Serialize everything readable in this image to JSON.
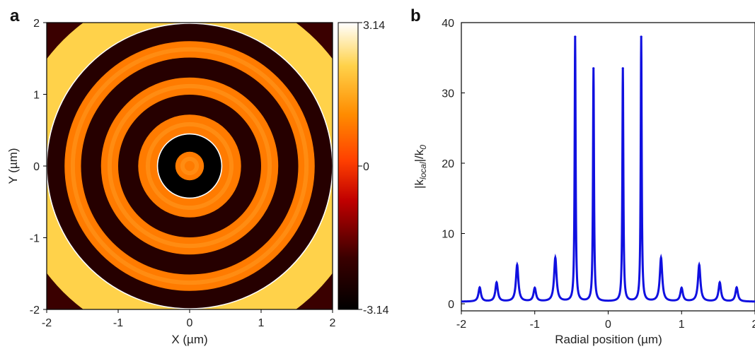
{
  "chart_data": [
    {
      "panel": "a",
      "type": "heatmap",
      "xlabel": "X (µm)",
      "ylabel": "Y (µm)",
      "xlim": [
        -2,
        2
      ],
      "ylim": [
        -2,
        2
      ],
      "x_ticks": [
        "-2",
        "-1",
        "0",
        "1",
        "2"
      ],
      "y_ticks": [
        "-2",
        "-1",
        "0",
        "1",
        "2"
      ],
      "colorbar": {
        "min_label": "-3.14",
        "mid_label": "0",
        "max_label": "3.14",
        "range": [
          -3.14,
          3.14
        ]
      },
      "colormap": [
        "#000000",
        "#3a0000",
        "#c00000",
        "#ff4000",
        "#ff8c00",
        "#ffd24a",
        "#ffffff"
      ],
      "center_disk_radius": 0.2,
      "inner_boundary_radius": 0.45,
      "outer_boundary_radius": 2.0,
      "rings": [
        {
          "r_min": 0.0,
          "r_max": 0.2,
          "phase": 0.9
        },
        {
          "r_min": 0.2,
          "r_max": 0.45,
          "phase": -3.14
        },
        {
          "r_min": 0.45,
          "r_max": 0.72,
          "phase": 0.9
        },
        {
          "r_min": 0.72,
          "r_max": 1.0,
          "phase": -2.4
        },
        {
          "r_min": 1.0,
          "r_max": 1.24,
          "phase": 0.9
        },
        {
          "r_min": 1.24,
          "r_max": 1.52,
          "phase": -2.4
        },
        {
          "r_min": 1.52,
          "r_max": 1.75,
          "phase": 0.9
        },
        {
          "r_min": 1.75,
          "r_max": 2.0,
          "phase": -2.4
        },
        {
          "r_min": 2.0,
          "r_max": 2.5,
          "phase": 2.2
        }
      ]
    },
    {
      "panel": "b",
      "type": "line",
      "xlabel": "Radial position (µm)",
      "ylabel_main": "|k",
      "ylabel_sub1": "local",
      "ylabel_mid": "|/k",
      "ylabel_sub2": "0",
      "xlim": [
        -2,
        2
      ],
      "ylim": [
        0,
        40
      ],
      "x_ticks": [
        "-2",
        "-1",
        "0",
        "1",
        "2"
      ],
      "y_ticks": [
        "0",
        "10",
        "20",
        "30",
        "40"
      ],
      "color": "#1010e0",
      "baseline": 0.3,
      "peaks": [
        {
          "x": -1.75,
          "y": 2.3
        },
        {
          "x": -1.52,
          "y": 3.0
        },
        {
          "x": -1.24,
          "y": 5.5
        },
        {
          "x": -1.0,
          "y": 2.2
        },
        {
          "x": -0.72,
          "y": 6.5
        },
        {
          "x": -0.45,
          "y": 38.0
        },
        {
          "x": -0.2,
          "y": 33.5
        },
        {
          "x": 0.2,
          "y": 33.5
        },
        {
          "x": 0.45,
          "y": 38.0
        },
        {
          "x": 0.72,
          "y": 6.5
        },
        {
          "x": 1.0,
          "y": 2.2
        },
        {
          "x": 1.24,
          "y": 5.5
        },
        {
          "x": 1.52,
          "y": 3.0
        },
        {
          "x": 1.75,
          "y": 2.3
        }
      ]
    }
  ]
}
